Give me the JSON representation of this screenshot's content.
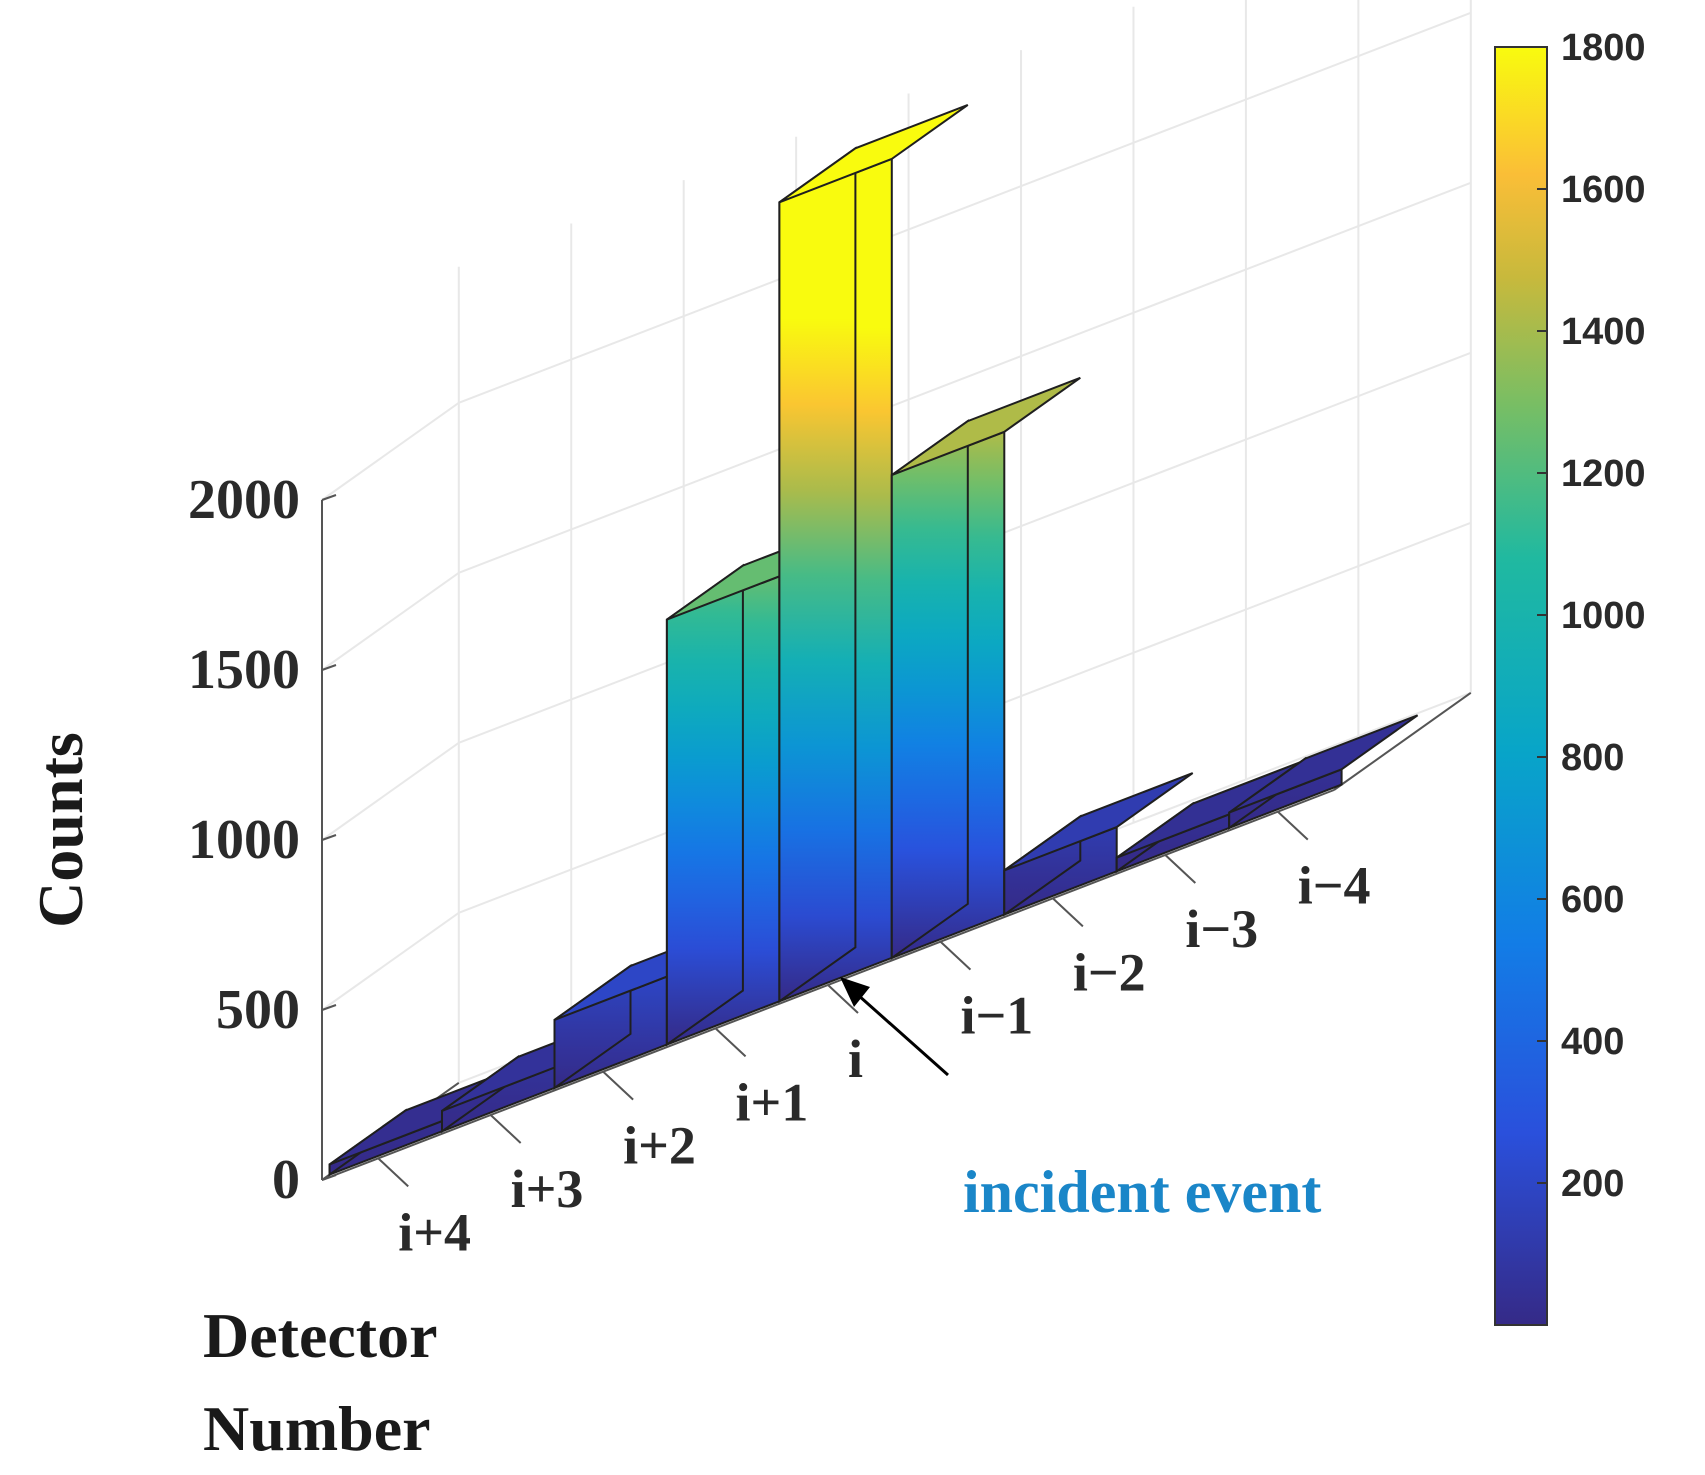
{
  "chart_data": {
    "type": "bar3d",
    "zlabel": "Counts",
    "xlabel_lines": [
      "Detector",
      "Number"
    ],
    "categories": [
      "i+4",
      "i+3",
      "i+2",
      "i+1",
      "i",
      "i−1",
      "i−2",
      "i−3",
      "i−4"
    ],
    "values": [
      30,
      60,
      200,
      1250,
      2350,
      1420,
      130,
      40,
      45
    ],
    "zlim": [
      0,
      2000
    ],
    "zticks": [
      0,
      500,
      1000,
      1500,
      2000
    ],
    "colorbar": {
      "range": [
        0,
        1800
      ],
      "ticks": [
        200,
        400,
        600,
        800,
        1000,
        1200,
        1400,
        1600,
        1800
      ],
      "colormap": "parula"
    },
    "annotation": {
      "text": "incident event",
      "color": "#1a86c8"
    },
    "grid": true
  }
}
